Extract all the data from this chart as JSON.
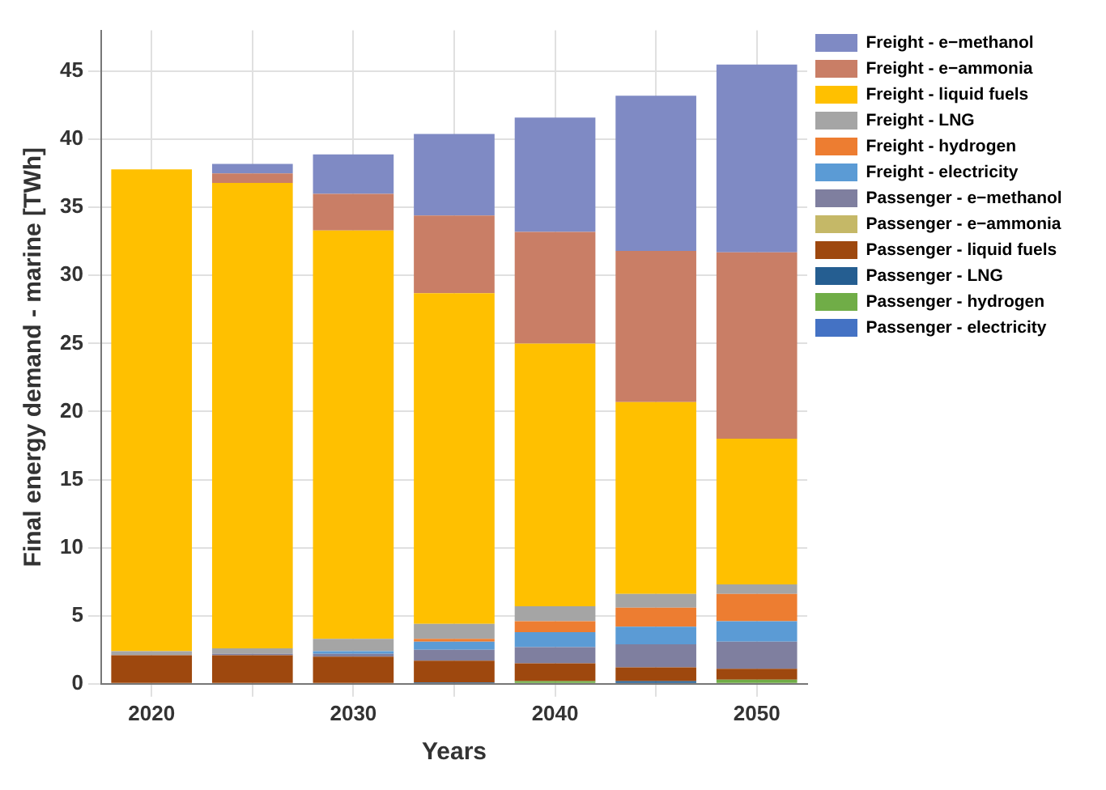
{
  "chart_data": {
    "type": "bar",
    "stacked": true,
    "xlabel": "Years",
    "ylabel": "Final energy demand - marine [TWh]",
    "categories": [
      "2020",
      null,
      "2030",
      null,
      "2040",
      null,
      "2050"
    ],
    "series": [
      {
        "name": "Passenger - electricity",
        "color": "#4472c4",
        "values": [
          0,
          0,
          0,
          0,
          0,
          0,
          0
        ]
      },
      {
        "name": "Passenger - hydrogen",
        "color": "#70ad47",
        "values": [
          0,
          0,
          0,
          0,
          0.2,
          0,
          0.3
        ]
      },
      {
        "name": "Passenger - LNG",
        "color": "#255e91",
        "values": [
          0,
          0,
          0,
          0.1,
          0,
          0.2,
          0
        ]
      },
      {
        "name": "Passenger - liquid fuels",
        "color": "#9e480e",
        "values": [
          2.1,
          2.1,
          2.0,
          1.6,
          1.3,
          1.0,
          0.8
        ]
      },
      {
        "name": "Passenger - e−ammonia",
        "color": "#c5b867",
        "values": [
          0,
          0,
          0,
          0,
          0,
          0,
          0
        ]
      },
      {
        "name": "Passenger - e−methanol",
        "color": "#7f7f9f",
        "values": [
          0,
          0.1,
          0.2,
          0.8,
          1.2,
          1.7,
          2.0
        ]
      },
      {
        "name": "Freight - electricity",
        "color": "#5b9bd5",
        "values": [
          0,
          0,
          0.2,
          0.6,
          1.1,
          1.3,
          1.5
        ]
      },
      {
        "name": "Freight - hydrogen",
        "color": "#ed7d31",
        "values": [
          0,
          0,
          0,
          0.2,
          0.8,
          1.4,
          2.0
        ]
      },
      {
        "name": "Freight - LNG",
        "color": "#a5a5a5",
        "values": [
          0.3,
          0.4,
          0.9,
          1.1,
          1.1,
          1.0,
          0.7
        ]
      },
      {
        "name": "Freight - liquid fuels",
        "color": "#ffc000",
        "values": [
          35.4,
          34.2,
          30.0,
          24.3,
          19.3,
          14.1,
          10.7
        ]
      },
      {
        "name": "Freight - e−ammonia",
        "color": "#c97e66",
        "values": [
          0,
          0.7,
          2.7,
          5.7,
          8.2,
          11.1,
          13.7
        ]
      },
      {
        "name": "Freight - e−methanol",
        "color": "#7f8ac4",
        "values": [
          0,
          0.7,
          2.9,
          6.0,
          8.4,
          11.4,
          13.8
        ]
      }
    ],
    "ylim": [
      0,
      48
    ],
    "yticks": [
      0,
      5,
      10,
      15,
      20,
      25,
      30,
      35,
      40,
      45
    ],
    "grid": true,
    "legend": "top right"
  }
}
